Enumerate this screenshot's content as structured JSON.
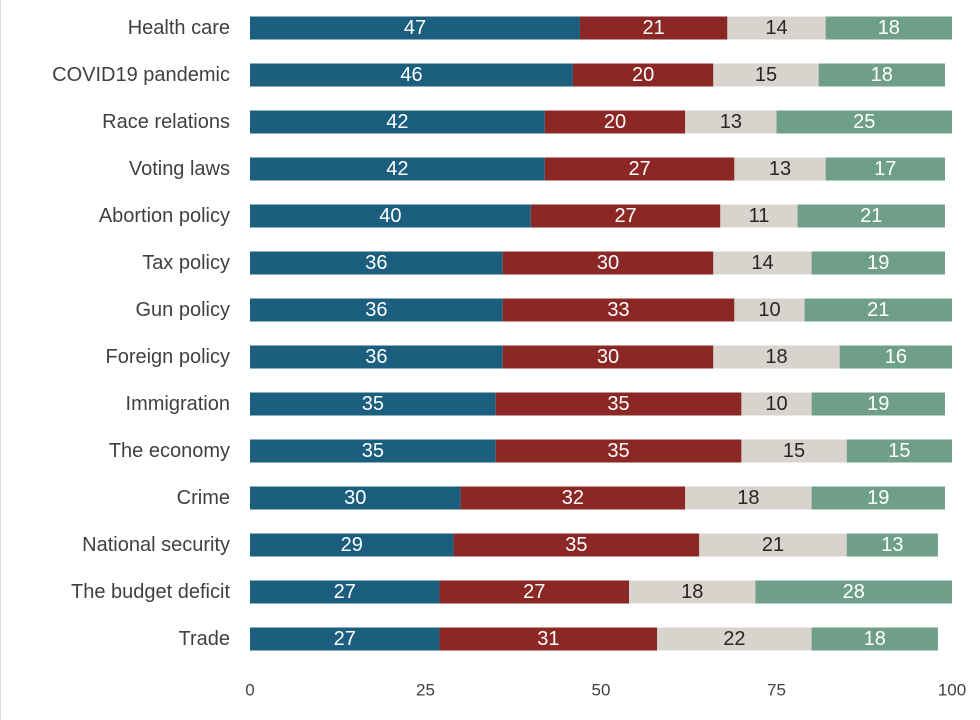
{
  "chart_data": {
    "type": "bar",
    "orientation": "horizontal",
    "stacked": true,
    "categories": [
      "Health care",
      "COVID19 pandemic",
      "Race relations",
      "Voting laws",
      "Abortion policy",
      "Tax policy",
      "Gun policy",
      "Foreign policy",
      "Immigration",
      "The economy",
      "Crime",
      "National security",
      "The budget deficit",
      "Trade"
    ],
    "series": [
      {
        "values": [
          47,
          46,
          42,
          42,
          40,
          36,
          36,
          36,
          35,
          35,
          30,
          29,
          27,
          27
        ],
        "color": "#1b5e7e",
        "label_color": "#ffffff"
      },
      {
        "values": [
          21,
          20,
          20,
          27,
          27,
          30,
          33,
          30,
          35,
          35,
          32,
          35,
          27,
          31
        ],
        "color": "#8b2724",
        "label_color": "#ffffff"
      },
      {
        "values": [
          14,
          15,
          13,
          13,
          11,
          14,
          10,
          18,
          10,
          15,
          18,
          21,
          18,
          22
        ],
        "color": "#d8d3cd",
        "label_color": "#262626"
      },
      {
        "values": [
          18,
          18,
          25,
          17,
          21,
          19,
          21,
          16,
          19,
          15,
          19,
          13,
          28,
          18
        ],
        "color": "#6f9f89",
        "label_color": "#ffffff"
      }
    ],
    "xlim": [
      0,
      100
    ],
    "xticks": [
      0,
      25,
      50,
      75,
      100
    ],
    "grid": false,
    "legend": "none",
    "title": "",
    "xlabel": "",
    "ylabel": ""
  }
}
